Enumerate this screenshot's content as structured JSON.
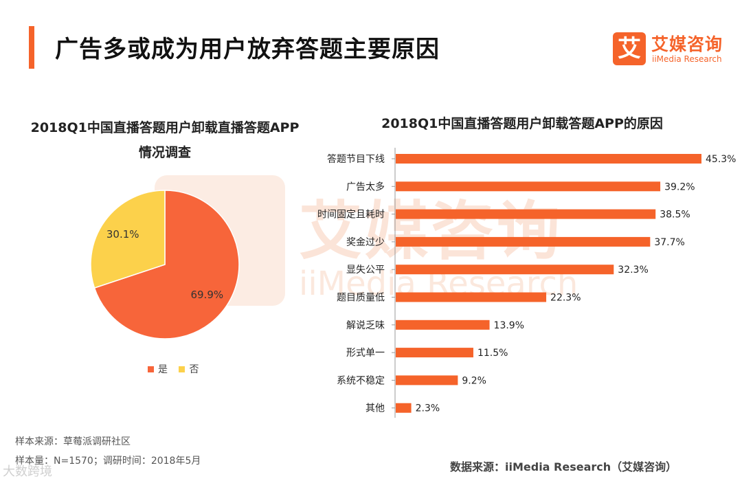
{
  "header": {
    "title": "广告多或成为用户放弃答题主要原因"
  },
  "logo": {
    "icon_char": "艾",
    "name_cn": "艾媒咨询",
    "name_en": "iiMedia Research"
  },
  "watermark": {
    "cn": "艾媒咨询",
    "en": "iiMedia Research",
    "icon_char": "艾"
  },
  "colors": {
    "accent": "#f5632a",
    "pie_yes": "#f7653a",
    "pie_no": "#fcd14b",
    "bar": "#f5632a"
  },
  "chart_data": [
    {
      "type": "pie",
      "title_line1": "2018Q1中国直播答题用户卸载直播答题APP",
      "title_line2": "情况调查",
      "slices": [
        {
          "label": "是",
          "value": 69.9,
          "display": "69.9%"
        },
        {
          "label": "否",
          "value": 30.1,
          "display": "30.1%"
        }
      ],
      "legend": [
        "是",
        "否"
      ]
    },
    {
      "type": "bar",
      "orientation": "horizontal",
      "title": "2018Q1中国直播答题用户卸载答题APP的原因",
      "categories": [
        "答题节目下线",
        "广告太多",
        "时间固定且耗时",
        "奖金过少",
        "显失公平",
        "题目质量低",
        "解说乏味",
        "形式单一",
        "系统不稳定",
        "其他"
      ],
      "values": [
        45.3,
        39.2,
        38.5,
        37.7,
        32.3,
        22.3,
        13.9,
        11.5,
        9.2,
        2.3
      ],
      "labels": [
        "45.3%",
        "39.2%",
        "38.5%",
        "37.7%",
        "32.3%",
        "22.3%",
        "13.9%",
        "11.5%",
        "9.2%",
        "2.3%"
      ],
      "xlim": [
        0,
        45.3
      ]
    }
  ],
  "footer": {
    "sample_source": "样本来源：草莓派调研社区",
    "sample_size": "样本量：N=1570；调研时间：2018年5月",
    "data_source": "数据来源：iiMedia Research（艾媒咨询）",
    "corner_watermark": "大数跨境"
  }
}
